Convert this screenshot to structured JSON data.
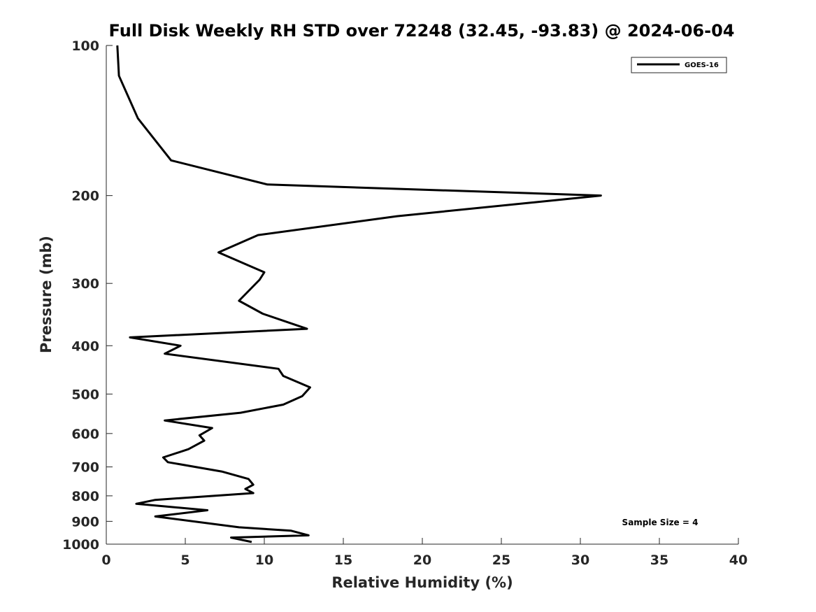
{
  "chart_data": {
    "type": "line",
    "title": "Full Disk Weekly RH STD over 72248 (32.45, -93.83) @ 2024-06-04",
    "xlabel": "Relative Humidity (%)",
    "ylabel": "Pressure (mb)",
    "xlim": [
      0,
      40
    ],
    "ylim": [
      100,
      1000
    ],
    "y_scale": "log",
    "y_reversed": true,
    "xticks": [
      0,
      5,
      10,
      15,
      20,
      25,
      30,
      35,
      40
    ],
    "xtick_labels": [
      "0",
      "5",
      "10",
      "15",
      "20",
      "25",
      "30",
      "35",
      "40"
    ],
    "yticks": [
      100,
      200,
      300,
      400,
      500,
      600,
      700,
      800,
      900,
      1000
    ],
    "ytick_labels": [
      "100",
      "200",
      "300",
      "400",
      "500",
      "600",
      "700",
      "800",
      "900",
      "1000"
    ],
    "grid": false,
    "legend": {
      "position": "top-right",
      "entries": [
        "GOES-16"
      ]
    },
    "annotation": "Sample Size = 4",
    "series": [
      {
        "name": "GOES-16",
        "color": "#000000",
        "x": [
          0.7,
          0.8,
          2.0,
          4.1,
          10.2,
          31.3,
          18.4,
          9.6,
          7.1,
          10.0,
          9.7,
          8.4,
          9.9,
          12.7,
          1.5,
          4.7,
          3.7,
          10.9,
          11.2,
          12.9,
          12.4,
          11.2,
          8.5,
          3.7,
          6.7,
          5.9,
          6.2,
          5.2,
          3.6,
          3.9,
          7.3,
          9.0,
          9.3,
          8.8,
          9.3,
          3.1,
          1.9,
          6.4,
          3.1,
          8.4,
          11.7,
          12.8,
          7.9,
          9.2
        ],
        "y": [
          100,
          115,
          140,
          170,
          190,
          200,
          220,
          240,
          260,
          285,
          295,
          325,
          345,
          370,
          385,
          400,
          415,
          445,
          460,
          485,
          505,
          525,
          545,
          565,
          585,
          605,
          620,
          645,
          670,
          685,
          715,
          740,
          760,
          775,
          790,
          815,
          830,
          855,
          880,
          925,
          940,
          960,
          970,
          990
        ]
      }
    ]
  }
}
